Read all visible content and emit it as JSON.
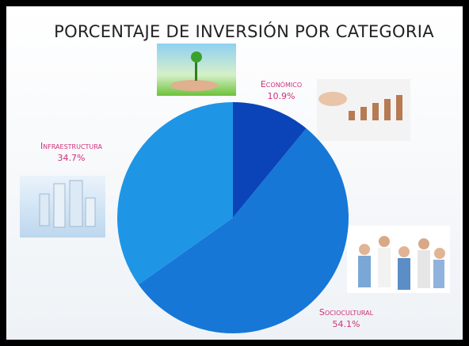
{
  "chart_data": {
    "type": "pie",
    "title": "PORCENTAJE DE INVERSIÓN POR CATEGORIA",
    "categories": [
      "Económico",
      "Sociocultural",
      "Infraestructura"
    ],
    "values": [
      10.9,
      54.1,
      34.7
    ],
    "value_labels": [
      "10.9%",
      "54.1%",
      "34.7%"
    ],
    "colors": [
      "#0b44b9",
      "#1677d6",
      "#1f95e5"
    ]
  }
}
